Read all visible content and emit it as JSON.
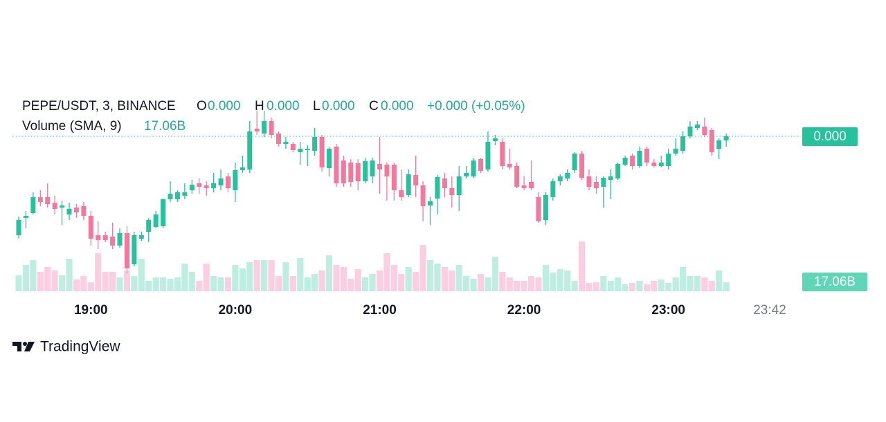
{
  "chart_data": {
    "type": "candlestick",
    "legend": {
      "symbol": "PEPE/USDT, 3, BINANCE",
      "o_label": "O",
      "o": "0.000",
      "h_label": "H",
      "h": "0.000",
      "l_label": "L",
      "l": "0.000",
      "c_label": "C",
      "c": "0.000",
      "change": "+0.000 (+0.05%)",
      "volume_title": "Volume (SMA, 9)"
    },
    "categories": [
      null,
      null,
      null,
      null,
      null,
      null,
      null,
      null,
      null,
      null,
      "19:00",
      null,
      null,
      null,
      null,
      null,
      null,
      null,
      null,
      null,
      null,
      null,
      null,
      null,
      null,
      null,
      null,
      null,
      null,
      null,
      "20:00",
      null,
      null,
      null,
      null,
      null,
      null,
      null,
      null,
      null,
      null,
      null,
      null,
      null,
      null,
      null,
      null,
      null,
      null,
      null,
      "21:00",
      null,
      null,
      null,
      null,
      null,
      null,
      null,
      null,
      null,
      null,
      null,
      null,
      null,
      null,
      null,
      null,
      null,
      null,
      null,
      "22:00",
      null,
      null,
      null,
      null,
      null,
      null,
      null,
      null,
      null,
      null,
      null,
      null,
      null,
      null,
      null,
      null,
      null,
      null,
      null,
      "23:00",
      null,
      null,
      null,
      null,
      null,
      null,
      null,
      null
    ],
    "current_time": "23:42",
    "open": [
      1.15e-05,
      1.175e-05,
      1.182e-05,
      1.205e-05,
      1.205e-05,
      1.197e-05,
      1.19e-05,
      1.18e-05,
      1.19e-05,
      1.192e-05,
      1.178e-05,
      1.15e-05,
      1.15e-05,
      1.148e-05,
      1.135e-05,
      1.153e-05,
      1.108e-05,
      1.145e-05,
      1.155e-05,
      1.162e-05,
      1.163e-05,
      1.202e-05,
      1.202e-05,
      1.207e-05,
      1.215e-05,
      1.225e-05,
      1.222e-05,
      1.218e-05,
      1.222e-05,
      1.235e-05,
      1.215e-05,
      1.244e-05,
      1.245e-05,
      1.304e-05,
      1.297e-05,
      1.315e-05,
      1.297e-05,
      1.282e-05,
      1.282e-05,
      1.27e-05,
      1.273e-05,
      1.272e-05,
      1.292e-05,
      1.247e-05,
      1.278e-05,
      1.258e-05,
      1.255e-05,
      1.254e-05,
      1.228e-05,
      1.235e-05,
      1.253e-05,
      1.252e-05,
      1.252e-05,
      1.215e-05,
      1.208e-05,
      1.237e-05,
      1.222e-05,
      1.193e-05,
      1.203e-05,
      1.232e-05,
      1.218e-05,
      1.208e-05,
      1.235e-05,
      1.235e-05,
      1.26e-05,
      1.245e-05,
      1.286e-05,
      1.285e-05,
      1.253e-05,
      1.25e-05,
      1.222e-05,
      1.227e-05,
      1.205e-05,
      1.172e-05,
      1.205e-05,
      1.228e-05,
      1.232e-05,
      1.244e-05,
      1.268e-05,
      1.235e-05,
      1.227e-05,
      1.22e-05,
      1.23e-05,
      1.232e-05,
      1.252e-05,
      1.265e-05,
      1.25e-05,
      1.275e-05,
      1.255e-05,
      1.25e-05,
      1.25e-05,
      1.268e-05,
      1.272e-05,
      1.293e-05,
      1.305e-05,
      1.307e-05,
      1.302e-05,
      1.275e-05,
      1.287e-05
    ],
    "high": [
      1.177e-05,
      1.185e-05,
      1.212e-05,
      1.215e-05,
      1.225e-05,
      1.207e-05,
      1.2e-05,
      1.197e-05,
      1.195e-05,
      1.198e-05,
      1.185e-05,
      1.17e-05,
      1.155e-05,
      1.168e-05,
      1.16e-05,
      1.163e-05,
      1.155e-05,
      1.155e-05,
      1.175e-05,
      1.185e-05,
      1.203e-05,
      1.228e-05,
      1.215e-05,
      1.225e-05,
      1.23e-05,
      1.232e-05,
      1.228e-05,
      1.24e-05,
      1.245e-05,
      1.24e-05,
      1.255e-05,
      1.265e-05,
      1.315e-05,
      1.33e-05,
      1.33e-05,
      1.32e-05,
      1.3e-05,
      1.292e-05,
      1.285e-05,
      1.285e-05,
      1.28e-05,
      1.305e-05,
      1.295e-05,
      1.278e-05,
      1.282e-05,
      1.265e-05,
      1.26e-05,
      1.26e-05,
      1.262e-05,
      1.262e-05,
      1.292e-05,
      1.255e-05,
      1.255e-05,
      1.245e-05,
      1.245e-05,
      1.265e-05,
      1.228e-05,
      1.205e-05,
      1.237e-05,
      1.24e-05,
      1.235e-05,
      1.25e-05,
      1.25e-05,
      1.262e-05,
      1.262e-05,
      1.3e-05,
      1.295e-05,
      1.29e-05,
      1.275e-05,
      1.255e-05,
      1.235e-05,
      1.258e-05,
      1.212e-05,
      1.212e-05,
      1.232e-05,
      1.238e-05,
      1.245e-05,
      1.27e-05,
      1.272e-05,
      1.245e-05,
      1.235e-05,
      1.235e-05,
      1.245e-05,
      1.255e-05,
      1.265e-05,
      1.268e-05,
      1.278e-05,
      1.278e-05,
      1.26e-05,
      1.265e-05,
      1.275e-05,
      1.29e-05,
      1.3e-05,
      1.315e-05,
      1.315e-05,
      1.32e-05,
      1.305e-05,
      1.29e-05,
      1.297e-05
    ],
    "low": [
      1.145e-05,
      1.16e-05,
      1.18e-05,
      1.192e-05,
      1.19e-05,
      1.18e-05,
      1.165e-05,
      1.172e-05,
      1.175e-05,
      1.172e-05,
      1.135e-05,
      1.13e-05,
      1.14e-05,
      1.13e-05,
      1.132e-05,
      1.095e-05,
      1.105e-05,
      1.142e-05,
      1.14e-05,
      1.16e-05,
      1.16e-05,
      1.198e-05,
      1.198e-05,
      1.202e-05,
      1.21e-05,
      1.21e-05,
      1.207e-05,
      1.212e-05,
      1.215e-05,
      1.212e-05,
      1.198e-05,
      1.24e-05,
      1.24e-05,
      1.295e-05,
      1.292e-05,
      1.29e-05,
      1.278e-05,
      1.275e-05,
      1.27e-05,
      1.252e-05,
      1.25e-05,
      1.265e-05,
      1.242e-05,
      1.235e-05,
      1.22e-05,
      1.22e-05,
      1.22e-05,
      1.215e-05,
      1.225e-05,
      1.225e-05,
      1.21e-05,
      1.2e-05,
      1.2e-05,
      1.2e-05,
      1.205e-05,
      1.205e-05,
      1.17e-05,
      1.165e-05,
      1.18e-05,
      1.205e-05,
      1.19e-05,
      1.185e-05,
      1.232e-05,
      1.232e-05,
      1.24e-05,
      1.242e-05,
      1.28e-05,
      1.245e-05,
      1.245e-05,
      1.218e-05,
      1.215e-05,
      1.215e-05,
      1.168e-05,
      1.165e-05,
      1.2e-05,
      1.222e-05,
      1.228e-05,
      1.24e-05,
      1.23e-05,
      1.215e-05,
      1.21e-05,
      1.19e-05,
      1.202e-05,
      1.23e-05,
      1.25e-05,
      1.245e-05,
      1.247e-05,
      1.25e-05,
      1.248e-05,
      1.248e-05,
      1.245e-05,
      1.265e-05,
      1.268e-05,
      1.29e-05,
      1.302e-05,
      1.292e-05,
      1.265e-05,
      1.26e-05,
      1.278e-05
    ],
    "close": [
      1.172e-05,
      1.178e-05,
      1.205e-05,
      1.198e-05,
      1.195e-05,
      1.188e-05,
      1.193e-05,
      1.188e-05,
      1.183e-05,
      1.178e-05,
      1.145e-05,
      1.143e-05,
      1.143e-05,
      1.135e-05,
      1.153e-05,
      1.102e-05,
      1.15e-05,
      1.15e-05,
      1.172e-05,
      1.18e-05,
      1.202e-05,
      1.21e-05,
      1.212e-05,
      1.212e-05,
      1.223e-05,
      1.22e-05,
      1.218e-05,
      1.225e-05,
      1.232e-05,
      1.218e-05,
      1.244e-05,
      1.248e-05,
      1.3e-05,
      1.3e-05,
      1.315e-05,
      1.295e-05,
      1.282e-05,
      1.285e-05,
      1.273e-05,
      1.275e-05,
      1.275e-05,
      1.292e-05,
      1.248e-05,
      1.275e-05,
      1.225e-05,
      1.225e-05,
      1.227e-05,
      1.228e-05,
      1.257e-05,
      1.258e-05,
      1.245e-05,
      1.235e-05,
      1.215e-05,
      1.205e-05,
      1.238e-05,
      1.222e-05,
      1.192e-05,
      1.199e-05,
      1.234e-05,
      1.218e-05,
      1.208e-05,
      1.235e-05,
      1.24e-05,
      1.258e-05,
      1.243e-05,
      1.285e-05,
      1.29e-05,
      1.25e-05,
      1.248e-05,
      1.22e-05,
      1.218e-05,
      1.218e-05,
      1.17e-05,
      1.208e-05,
      1.228e-05,
      1.235e-05,
      1.24e-05,
      1.268e-05,
      1.233e-05,
      1.22e-05,
      1.218e-05,
      1.233e-05,
      1.235e-05,
      1.253e-05,
      1.262e-05,
      1.25e-05,
      1.272e-05,
      1.255e-05,
      1.25e-05,
      1.255e-05,
      1.268e-05,
      1.275e-05,
      1.293e-05,
      1.307e-05,
      1.31e-05,
      1.295e-05,
      1.27e-05,
      1.287e-05,
      1.293e-05
    ],
    "volume": [
      30100000000.0,
      49800000000.0,
      59000000000.0,
      36700000000.0,
      45900000000.0,
      39300000000.0,
      30100000000.0,
      61600000000.0,
      22300000000.0,
      28800000000.0,
      17000000000.0,
      72100000000.0,
      36700000000.0,
      36700000000.0,
      26200000000.0,
      39300000000.0,
      28800000000.0,
      61600000000.0,
      19700000000.0,
      26200000000.0,
      26200000000.0,
      23600000000.0,
      26200000000.0,
      52400000000.0,
      36700000000.0,
      19700000000.0,
      52400000000.0,
      28800000000.0,
      26200000000.0,
      26200000000.0,
      49800000000.0,
      43200000000.0,
      55000000000.0,
      59000000000.0,
      59000000000.0,
      59000000000.0,
      28800000000.0,
      55000000000.0,
      28800000000.0,
      62900000000.0,
      26200000000.0,
      32800000000.0,
      39300000000.0,
      68100000000.0,
      49800000000.0,
      45900000000.0,
      23600000000.0,
      41900000000.0,
      26200000000.0,
      32800000000.0,
      39300000000.0,
      72100000000.0,
      49800000000.0,
      32800000000.0,
      45900000000.0,
      36700000000.0,
      87800000000.0,
      59000000000.0,
      52400000000.0,
      45900000000.0,
      39300000000.0,
      49800000000.0,
      28800000000.0,
      23600000000.0,
      32800000000.0,
      26200000000.0,
      65500000000.0,
      36700000000.0,
      26200000000.0,
      19700000000.0,
      19700000000.0,
      28800000000.0,
      26200000000.0,
      49800000000.0,
      35400000000.0,
      41900000000.0,
      39300000000.0,
      19700000000.0,
      94300000000.0,
      15700000000.0,
      17000000000.0,
      28800000000.0,
      19700000000.0,
      26200000000.0,
      13100000000.0,
      15700000000.0,
      19700000000.0,
      13100000000.0,
      19700000000.0,
      22300000000.0,
      15700000000.0,
      26200000000.0,
      45900000000.0,
      28800000000.0,
      28800000000.0,
      26200000000.0,
      19700000000.0,
      39300000000.0,
      17060000000.0
    ],
    "last_price": {
      "value": 1.293e-05,
      "label": "0.000"
    },
    "last_volume": {
      "value": 17060000000.0,
      "label": "17.06B"
    },
    "ylim": [
      1.1e-05,
      1.32e-05
    ],
    "y2lim": [
      0,
      160000000000.0
    ],
    "up_color": "#26c29b",
    "down_color": "#f7779c",
    "up_volume_color": "#bdeedf",
    "down_volume_color": "#fccfe0",
    "volume_label_color": "#5fd6b6"
  }
}
